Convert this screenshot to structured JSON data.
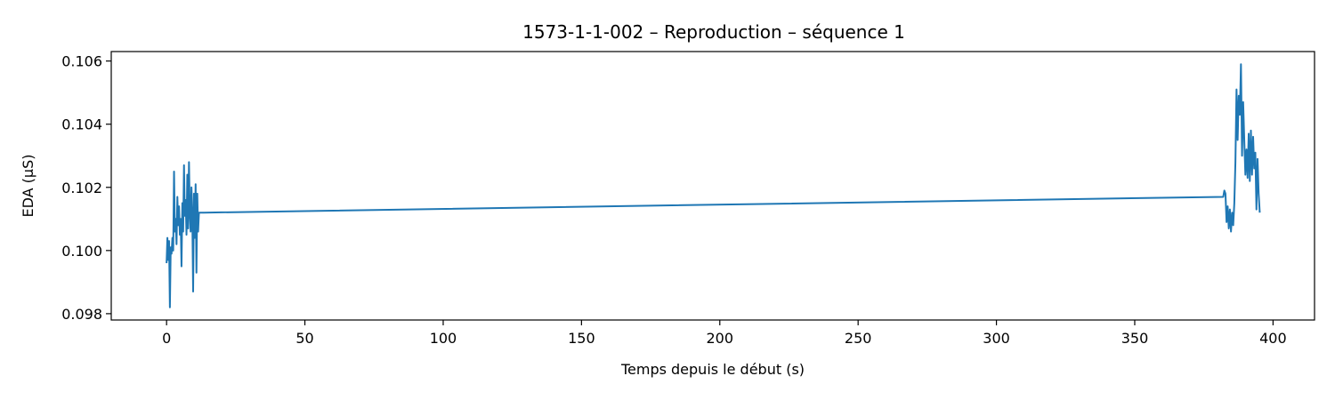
{
  "chart_data": {
    "type": "line",
    "title": "1573-1-1-002 – Reproduction – séquence 1",
    "xlabel": "Temps depuis le début (s)",
    "ylabel": "EDA (µS)",
    "xlim": [
      -20,
      415
    ],
    "ylim": [
      0.0978,
      0.1063
    ],
    "xticks": [
      0,
      50,
      100,
      150,
      200,
      250,
      300,
      350,
      400
    ],
    "yticks": [
      0.098,
      0.1,
      0.102,
      0.104,
      0.106
    ],
    "ytick_labels": [
      "0.098",
      "0.100",
      "0.102",
      "0.104",
      "0.106"
    ],
    "grid": false,
    "line_color": "#1f77b4",
    "series": [
      {
        "x": [
          0,
          0.3,
          0.6,
          0.9,
          1.2,
          1.5,
          1.8,
          2.1,
          2.4,
          2.7,
          3.0,
          3.3,
          3.6,
          3.9,
          4.2,
          4.5,
          4.8,
          5.1,
          5.4,
          5.7,
          6.0,
          6.3,
          6.6,
          6.9,
          7.2,
          7.5,
          7.8,
          8.1,
          8.4,
          8.7,
          9.0,
          9.3,
          9.6,
          9.9,
          10.2,
          10.5,
          10.8,
          11.1,
          11.4,
          11.7,
          12.0,
          12.3,
          12.6,
          12.9,
          13.2,
          13.5,
          382.0,
          382.4,
          382.8,
          383.2,
          383.6,
          384.0,
          384.4,
          384.8,
          385.2,
          385.6,
          386.0,
          386.4,
          386.8,
          387.2,
          387.6,
          388.0,
          388.4,
          388.8,
          389.2,
          389.6,
          390.0,
          390.4,
          390.8,
          391.2,
          391.6,
          392.0,
          392.4,
          392.8,
          393.2,
          393.6,
          394.0,
          394.4,
          394.8,
          395.2
        ],
        "y": [
          0.0996,
          0.1004,
          0.0997,
          0.1003,
          0.0982,
          0.1001,
          0.0999,
          0.1004,
          0.1,
          0.1025,
          0.1006,
          0.101,
          0.1002,
          0.1017,
          0.1008,
          0.1014,
          0.1005,
          0.101,
          0.0995,
          0.1015,
          0.1006,
          0.1027,
          0.1011,
          0.1016,
          0.1005,
          0.1024,
          0.1007,
          0.1028,
          0.1012,
          0.1006,
          0.102,
          0.1011,
          0.0987,
          0.1018,
          0.1004,
          0.1021,
          0.0993,
          0.1018,
          0.1006,
          0.1012,
          0.1012,
          0.1012,
          0.1012,
          0.1012,
          0.1012,
          0.1012,
          0.1017,
          0.1019,
          0.1018,
          0.1009,
          0.1014,
          0.1007,
          0.1013,
          0.1006,
          0.1012,
          0.1008,
          0.1015,
          0.1028,
          0.1051,
          0.1035,
          0.1049,
          0.1043,
          0.1059,
          0.103,
          0.1047,
          0.1035,
          0.1024,
          0.1032,
          0.1023,
          0.1037,
          0.1022,
          0.1038,
          0.1024,
          0.1036,
          0.1026,
          0.1031,
          0.1013,
          0.1029,
          0.1018,
          0.1012
        ]
      }
    ]
  }
}
